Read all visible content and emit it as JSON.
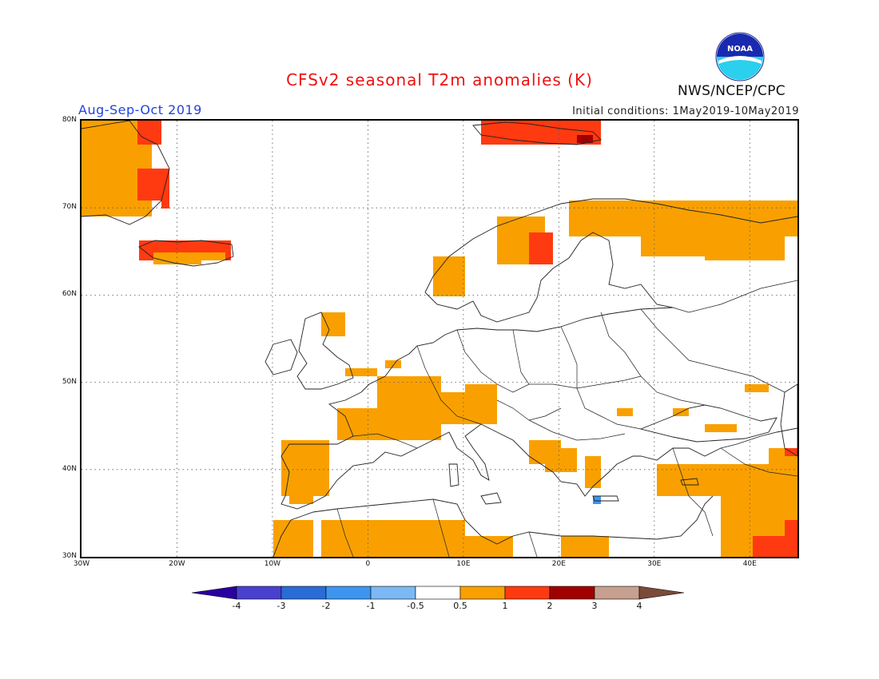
{
  "title": "CFSv2 seasonal T2m anomalies (K)",
  "season": "Aug-Sep-Oct 2019",
  "initial_conditions": "Initial conditions: 1May2019-10May2019",
  "agency": "NWS/NCEP/CPC",
  "logo_text": "NOAA",
  "map": {
    "lon_range": [
      -30,
      45
    ],
    "lat_range": [
      30,
      80
    ],
    "lat_labels": [
      "80N",
      "70N",
      "60N",
      "50N",
      "40N",
      "30N"
    ],
    "lon_labels": [
      "30W",
      "20W",
      "10W",
      "0",
      "10E",
      "20E",
      "30E",
      "40E"
    ],
    "grid": true
  },
  "legend": {
    "ticks": [
      "-4",
      "-3",
      "-2",
      "-1",
      "-0.5",
      "0.5",
      "1",
      "2",
      "3",
      "4"
    ],
    "colors": [
      "#2a00a0",
      "#4a40d0",
      "#2a6cd6",
      "#3c96f0",
      "#7cb8f4",
      "#ffffff",
      "#f9a000",
      "#ff3a10",
      "#a00000",
      "#c8a090",
      "#7a4a3a"
    ]
  }
}
